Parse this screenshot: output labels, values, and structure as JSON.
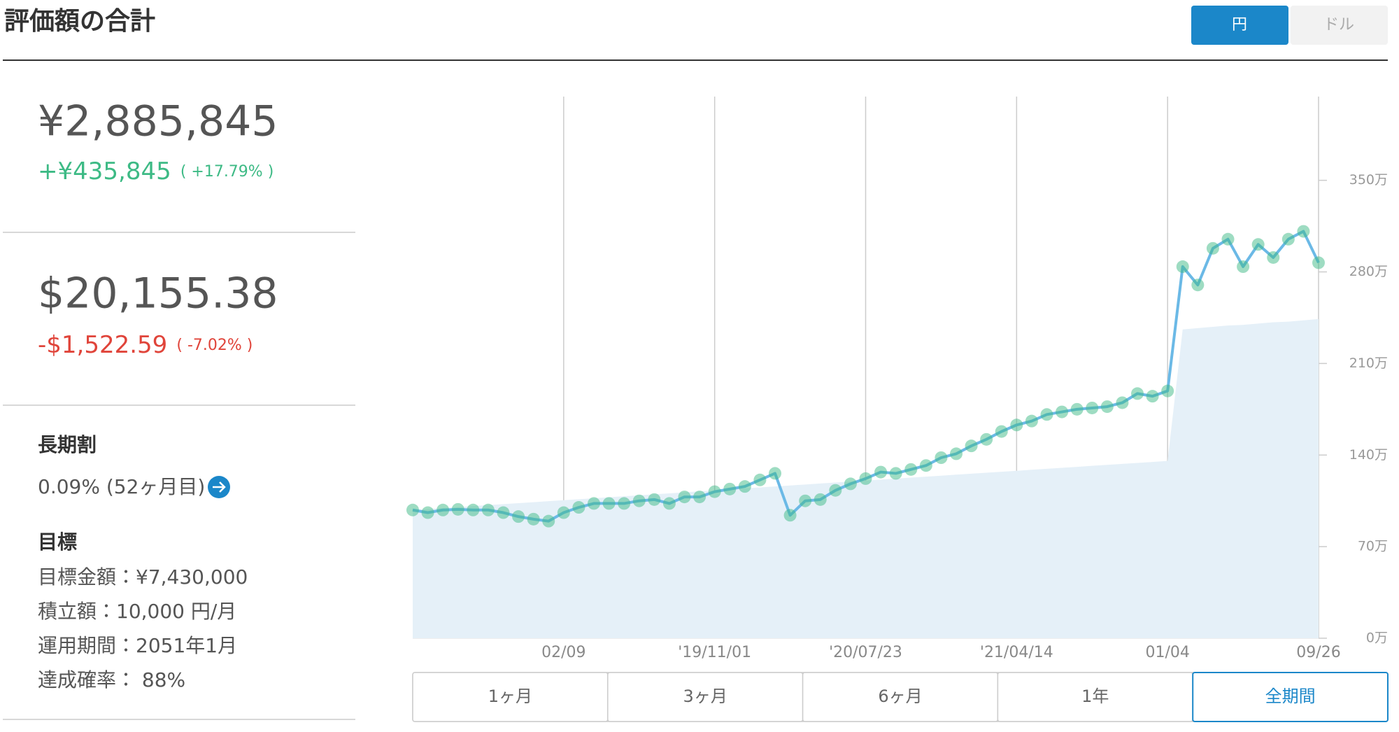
{
  "header": {
    "title": "評価額の合計",
    "currency_buttons": [
      "円",
      "ドル"
    ]
  },
  "summary": {
    "jpy": {
      "total": "¥2,885,845",
      "change": "+¥435,845",
      "change_pct": "( +17.79% )"
    },
    "usd": {
      "total": "$20,155.38",
      "change": "-$1,522.59",
      "change_pct": "( -7.02% )"
    }
  },
  "long_term": {
    "title": "長期割",
    "rate": "0.09% (52ヶ月目)"
  },
  "goal": {
    "title": "目標",
    "items": [
      "目標金額：¥7,430,000",
      "積立額：10,000 円/月",
      "運用期間：2051年1月",
      "達成確率： 88%"
    ]
  },
  "chart_data": {
    "type": "line",
    "categories": [
      null,
      null,
      null,
      null,
      null,
      null,
      null,
      null,
      null,
      null,
      "02/09",
      null,
      null,
      null,
      null,
      null,
      null,
      null,
      null,
      null,
      "'19/11/01",
      null,
      null,
      null,
      null,
      null,
      null,
      null,
      null,
      null,
      "'20/07/23",
      null,
      null,
      null,
      null,
      null,
      null,
      null,
      null,
      null,
      "'21/04/14",
      null,
      null,
      null,
      null,
      null,
      null,
      null,
      null,
      null,
      "01/04",
      null,
      null,
      null,
      null,
      null,
      null,
      null,
      null,
      null,
      "09/26"
    ],
    "series": [
      {
        "type": "area",
        "color": "#e5f0f8",
        "values": [
          98,
          98.75,
          99.5,
          100.25,
          101,
          101.75,
          102.5,
          103.25,
          104,
          104.75,
          105.5,
          106.25,
          107,
          107.75,
          108.5,
          109.25,
          110,
          110.75,
          111.5,
          112.25,
          113,
          113.75,
          114.5,
          115.25,
          116,
          116.75,
          117.5,
          118.25,
          119,
          119.75,
          120.5,
          121.25,
          122,
          122.75,
          123.5,
          124.25,
          125,
          125.75,
          126.5,
          127.25,
          128,
          128.75,
          129.5,
          130.25,
          131,
          131.75,
          132.5,
          133.25,
          134,
          134.75,
          135.5,
          236,
          237,
          238,
          239,
          239.5,
          240.5,
          241.5,
          242,
          243,
          244
        ]
      },
      {
        "type": "line",
        "color": "#6bb9e6",
        "marker_color": "#3dba85",
        "values": [
          98,
          96,
          98,
          98.5,
          98,
          98,
          96,
          93,
          91,
          89.5,
          96,
          100,
          103,
          103,
          103,
          105,
          106,
          103,
          108,
          108,
          112,
          114,
          116,
          121,
          126,
          94,
          105,
          106,
          113,
          118,
          122,
          127,
          126,
          129,
          132,
          138,
          141,
          147,
          152,
          158,
          163,
          166,
          171,
          173,
          175,
          176,
          177,
          180,
          187,
          185,
          189,
          284,
          270,
          298,
          305,
          284,
          301,
          291,
          305,
          311,
          287
        ]
      }
    ],
    "ylim": [
      0,
      414
    ],
    "yticks": [
      {
        "value": 0,
        "label": "0万"
      },
      {
        "value": 70,
        "label": "70万"
      },
      {
        "value": 140,
        "label": "140万"
      },
      {
        "value": 210,
        "label": "210万"
      },
      {
        "value": 280,
        "label": "280万"
      },
      {
        "value": 350,
        "label": "350万"
      }
    ],
    "grid": true
  },
  "period_tabs": [
    "1ヶ月",
    "3ヶ月",
    "6ヶ月",
    "1年",
    "全期間"
  ]
}
